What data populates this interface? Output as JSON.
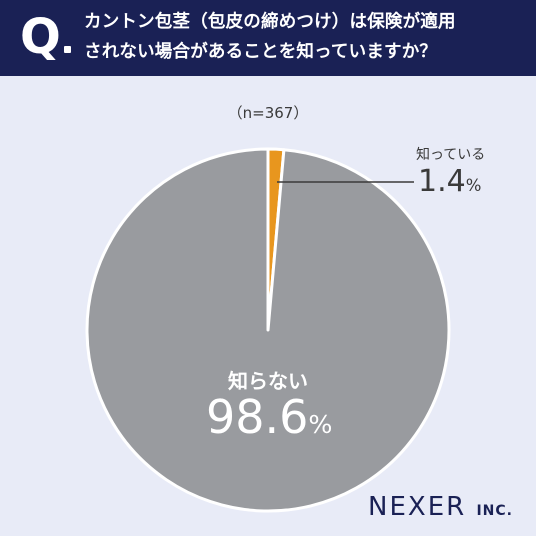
{
  "header": {
    "q_label": "Q",
    "question_line1": "カントン包茎（包皮の締めつけ）は保険が適用",
    "question_line2": "されない場合があることを知っていますか？"
  },
  "sample_note": "（n=367）",
  "chart_data": {
    "type": "pie",
    "title": "カントン包茎（包皮の締めつけ）は保険が適用されない場合があることを知っていますか？",
    "sample_size": "（n=367）",
    "slices": [
      {
        "label": "知っている",
        "value": 1.4,
        "value_text": "1.4",
        "unit": "%",
        "color": "#e8961e"
      },
      {
        "label": "知らない",
        "value": 98.6,
        "value_text": "98.6",
        "unit": "%",
        "color": "#999b9f"
      }
    ]
  },
  "logo": {
    "name": "NEXER",
    "suffix": "INC."
  }
}
